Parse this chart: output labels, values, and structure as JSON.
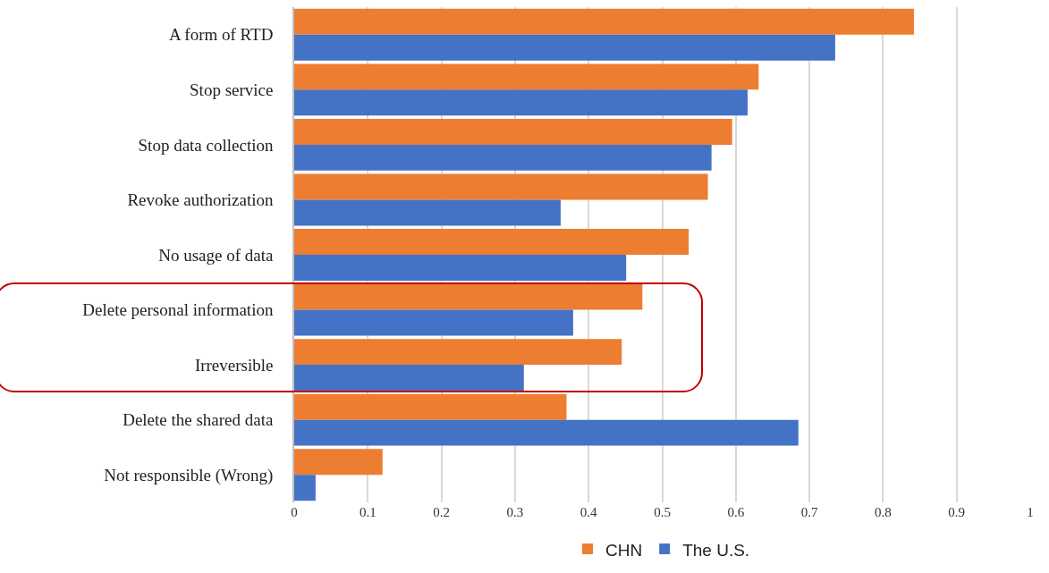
{
  "chart_data": {
    "type": "bar",
    "orientation": "horizontal",
    "categories": [
      "A form of RTD",
      "Stop service",
      "Stop data collection",
      "Revoke authorization",
      "No usage of data",
      "Delete personal information",
      "Irreversible",
      "Delete the shared data",
      "Not responsible (Wrong)"
    ],
    "series": [
      {
        "name": "CHN",
        "color": "#ed7d31",
        "values": [
          0.842,
          0.631,
          0.595,
          0.562,
          0.536,
          0.473,
          0.445,
          0.37,
          0.12
        ]
      },
      {
        "name": "The U.S.",
        "color": "#4472c4",
        "values": [
          0.735,
          0.616,
          0.567,
          0.362,
          0.451,
          0.379,
          0.312,
          0.685,
          0.029
        ]
      }
    ],
    "xlim": [
      0,
      1
    ],
    "xticks": [
      0,
      0.1,
      0.2,
      0.3,
      0.4,
      0.5,
      0.6,
      0.7,
      0.8,
      0.9,
      1
    ],
    "grid": "x",
    "legend": "bottom"
  }
}
